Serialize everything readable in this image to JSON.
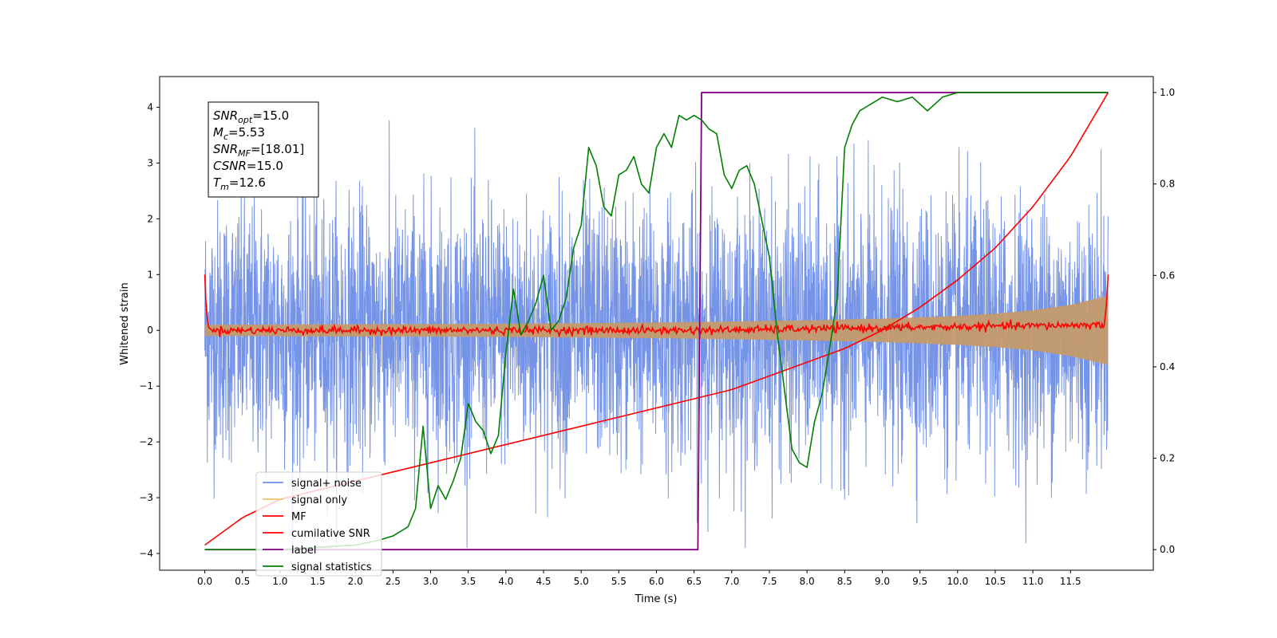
{
  "chart_data": {
    "type": "line",
    "xlabel": "Time (s)",
    "ylabel": "Whitened strain",
    "xlim": [
      -0.6,
      12.6
    ],
    "ylim": [
      -4.3,
      4.55
    ],
    "y2lim": [
      -0.045,
      1.035
    ],
    "xticks": [
      0.0,
      0.5,
      1.0,
      1.5,
      2.0,
      2.5,
      3.0,
      3.5,
      4.0,
      4.5,
      5.0,
      5.5,
      6.0,
      6.5,
      7.0,
      7.5,
      8.0,
      8.5,
      9.0,
      9.5,
      10.0,
      10.5,
      11.0,
      11.5
    ],
    "xtick_labels": [
      "0.0",
      "0.5",
      "1.0",
      "1.5",
      "2.0",
      "2.5",
      "3.0",
      "3.5",
      "4.0",
      "4.5",
      "5.0",
      "5.5",
      "6.0",
      "6.5",
      "7.0",
      "7.5",
      "8.0",
      "8.5",
      "9.0",
      "9.5",
      "10.0",
      "10.5",
      "11.0",
      "11.5"
    ],
    "yticks": [
      4,
      3,
      2,
      1,
      0,
      -1,
      -2,
      -3,
      -4
    ],
    "ytick_labels": [
      "4",
      "3",
      "2",
      "1",
      "0",
      "−1",
      "−2",
      "−3",
      "−4"
    ],
    "y2ticks": [
      1.0,
      0.8,
      0.6,
      0.4,
      0.2,
      0.0
    ],
    "y2tick_labels": [
      "1.0",
      "0.8",
      "0.6",
      "0.4",
      "0.2",
      "0.0"
    ],
    "grid": false,
    "legend_position": "lower-left",
    "series": [
      {
        "name": "signal+ noise",
        "color": "#6f8ee6",
        "axis": "left",
        "description_values": {
          "x_range": [
            0.0,
            12.0
          ],
          "typical_amplitude": [
            -2.5,
            2.5
          ],
          "peak_min": -3.9,
          "peak_max": 4.15
        }
      },
      {
        "name": "signal only",
        "color": "#f5c26b",
        "axis": "left",
        "envelope": {
          "x": [
            0.0,
            2.0,
            4.0,
            6.0,
            8.0,
            9.0,
            10.0,
            10.5,
            11.0,
            11.5,
            12.0
          ],
          "amplitude": [
            0.1,
            0.11,
            0.12,
            0.14,
            0.18,
            0.21,
            0.26,
            0.3,
            0.36,
            0.46,
            0.62
          ]
        }
      },
      {
        "name": "MF",
        "color": "#ff0000",
        "axis": "left",
        "x": [
          0.0,
          0.02,
          0.05,
          0.1,
          6.6,
          11.95,
          11.98,
          12.0
        ],
        "y": [
          1.0,
          0.35,
          0.05,
          0.0,
          0.0,
          0.1,
          0.5,
          1.0
        ]
      },
      {
        "name": "cumilative SNR",
        "color": "#ff0000",
        "axis": "right",
        "x": [
          0.0,
          0.5,
          1.0,
          2.0,
          3.0,
          4.0,
          5.0,
          6.0,
          7.0,
          8.0,
          8.5,
          9.0,
          9.5,
          10.0,
          10.5,
          11.0,
          11.5,
          12.0
        ],
        "y": [
          0.01,
          0.07,
          0.11,
          0.15,
          0.19,
          0.23,
          0.27,
          0.31,
          0.35,
          0.41,
          0.44,
          0.48,
          0.53,
          0.59,
          0.66,
          0.75,
          0.86,
          1.0
        ]
      },
      {
        "name": "label",
        "color": "#800080",
        "axis": "right",
        "x": [
          0.0,
          6.55,
          6.6,
          12.0
        ],
        "y": [
          0.0,
          0.0,
          1.0,
          1.0
        ]
      },
      {
        "name": "signal statistics",
        "color": "#008000",
        "axis": "right",
        "x": [
          0.0,
          0.5,
          1.0,
          1.5,
          2.0,
          2.3,
          2.5,
          2.7,
          2.8,
          2.9,
          3.0,
          3.1,
          3.2,
          3.3,
          3.4,
          3.5,
          3.6,
          3.7,
          3.8,
          3.9,
          4.0,
          4.1,
          4.2,
          4.3,
          4.4,
          4.5,
          4.6,
          4.7,
          4.8,
          4.9,
          5.0,
          5.1,
          5.2,
          5.3,
          5.4,
          5.5,
          5.6,
          5.7,
          5.8,
          5.9,
          6.0,
          6.1,
          6.2,
          6.3,
          6.4,
          6.5,
          6.6,
          6.7,
          6.8,
          6.9,
          7.0,
          7.1,
          7.2,
          7.3,
          7.4,
          7.5,
          7.6,
          7.7,
          7.8,
          7.9,
          8.0,
          8.1,
          8.2,
          8.3,
          8.4,
          8.5,
          8.6,
          8.7,
          8.8,
          8.9,
          9.0,
          9.2,
          9.4,
          9.6,
          9.8,
          10.0,
          10.5,
          11.0,
          12.0
        ],
        "y": [
          0.0,
          0.0,
          0.0,
          0.005,
          0.01,
          0.02,
          0.03,
          0.05,
          0.09,
          0.27,
          0.09,
          0.14,
          0.11,
          0.15,
          0.2,
          0.32,
          0.28,
          0.26,
          0.21,
          0.25,
          0.43,
          0.57,
          0.47,
          0.5,
          0.54,
          0.6,
          0.48,
          0.5,
          0.55,
          0.66,
          0.71,
          0.88,
          0.84,
          0.75,
          0.73,
          0.82,
          0.83,
          0.86,
          0.8,
          0.78,
          0.88,
          0.91,
          0.88,
          0.95,
          0.94,
          0.95,
          0.94,
          0.92,
          0.91,
          0.82,
          0.79,
          0.83,
          0.84,
          0.8,
          0.72,
          0.64,
          0.48,
          0.35,
          0.22,
          0.19,
          0.18,
          0.28,
          0.34,
          0.44,
          0.55,
          0.88,
          0.93,
          0.96,
          0.97,
          0.98,
          0.99,
          0.98,
          0.99,
          0.96,
          0.99,
          1.0,
          1.0,
          1.0,
          1.0
        ]
      }
    ],
    "stats_box": {
      "lines": [
        {
          "base": "SNR",
          "sub": "opt",
          "value": "=15.0"
        },
        {
          "base": "M",
          "sub": "c",
          "value": "=5.53"
        },
        {
          "base": "SNR",
          "sub": "MF",
          "value": "=[18.01]"
        },
        {
          "base": "CSNR",
          "sub": "",
          "value": "=15.0"
        },
        {
          "base": "T",
          "sub": "m",
          "value": "=12.6"
        }
      ]
    }
  }
}
